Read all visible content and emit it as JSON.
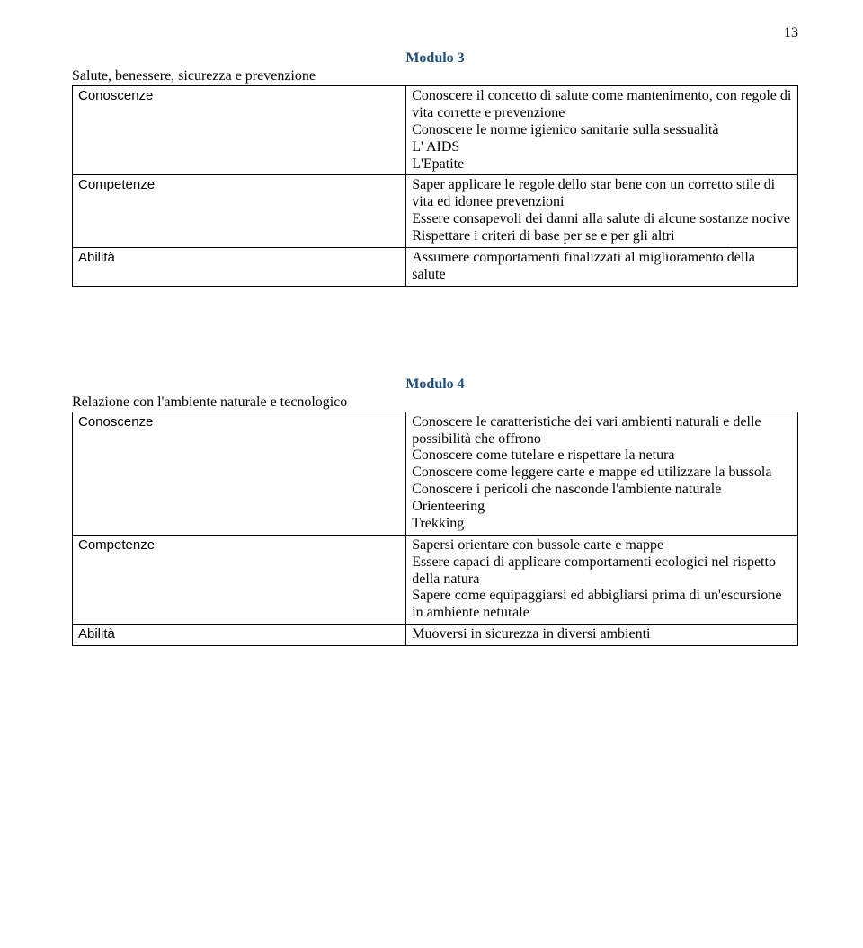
{
  "page_number": "13",
  "module3": {
    "title": "Modulo 3",
    "section_title": "Salute, benessere, sicurezza e prevenzione",
    "rows": {
      "conoscenze": {
        "label": "Conoscenze",
        "lines": [
          "Conoscere il concetto di salute come mantenimento, con regole di vita corrette e prevenzione",
          "Conoscere le norme igienico sanitarie sulla sessualità",
          "L' AIDS",
          "L'Epatite"
        ]
      },
      "competenze": {
        "label": "Competenze",
        "lines": [
          "Saper applicare le regole dello star bene con un corretto stile di vita ed idonee prevenzioni",
          "Essere consapevoli dei danni alla salute di alcune sostanze nocive",
          " Rispettare i criteri di base per se e per gli altri"
        ]
      },
      "abilita": {
        "label": "Abilità",
        "lines": [
          "Assumere comportamenti finalizzati al miglioramento della salute"
        ]
      }
    }
  },
  "module4": {
    "title": "Modulo 4",
    "section_title": "Relazione con l'ambiente naturale e tecnologico",
    "rows": {
      "conoscenze": {
        "label": "Conoscenze",
        "lines": [
          "Conoscere le caratteristiche dei vari ambienti naturali e delle possibilità che offrono",
          "Conoscere come tutelare e rispettare la netura",
          "Conoscere come leggere carte e mappe ed utilizzare la bussola",
          "Conoscere i pericoli che nasconde l'ambiente naturale",
          "Orienteering",
          "Trekking"
        ]
      },
      "competenze": {
        "label": "Competenze",
        "lines": [
          "Sapersi orientare con bussole carte e mappe",
          "Essere capaci di applicare comportamenti ecologici nel rispetto della natura",
          "Sapere come equipaggiarsi ed abbigliarsi prima di un'escursione in ambiente neturale"
        ]
      },
      "abilita": {
        "label": "Abilità",
        "lines": [
          "Muoversi in sicurezza in diversi ambienti"
        ]
      }
    }
  },
  "style": {
    "title_color": "#1f4e79",
    "text_color": "#000000",
    "background_color": "#ffffff",
    "border_color": "#000000",
    "body_font": "Times New Roman",
    "label_font": "Arial",
    "body_fontsize": 16,
    "label_fontsize": 15
  }
}
